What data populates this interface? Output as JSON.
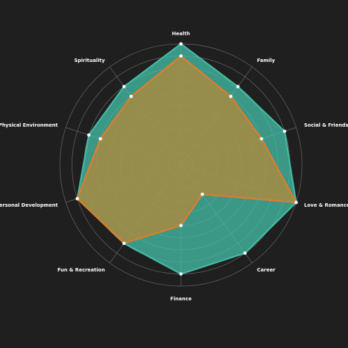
{
  "chart_data": {
    "type": "radar",
    "categories": [
      "Health",
      "Family",
      "Social & Friends",
      "Love & Romance",
      "Career",
      "Finance",
      "Fun & Recreation",
      "Personal Development",
      "Physical Environment",
      "Spirituality"
    ],
    "rmax": 10,
    "rings": 10,
    "grid": true,
    "legend": "none",
    "series": [
      {
        "values": [
          10,
          8,
          9,
          10,
          9,
          9,
          8,
          9,
          8,
          8
        ],
        "stroke": "#44bba4",
        "fill": "#44bba4"
      },
      {
        "values": [
          9,
          7,
          7,
          10,
          3,
          5,
          8,
          9,
          7,
          7
        ],
        "stroke": "#e27c2a",
        "fill": "#b08a3c"
      }
    ],
    "colors": {
      "background": "#1f1f1f",
      "grid": "#6b6b6b",
      "label": "#ffffff",
      "marker": "#ffffff"
    }
  }
}
